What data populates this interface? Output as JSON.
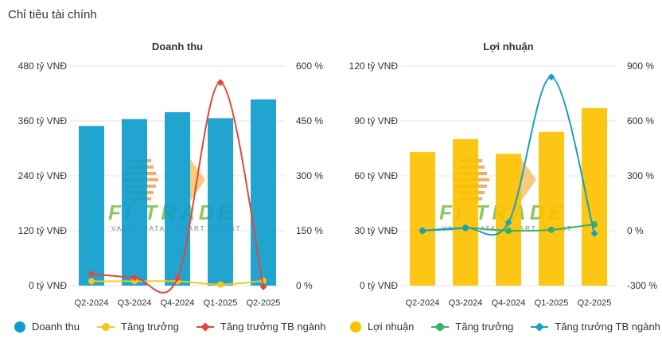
{
  "page": {
    "title": "Chỉ tiêu tài chính"
  },
  "colors": {
    "revenue_bar": "#0e9ccb",
    "profit_bar": "#fcc100",
    "growth_yellow": "#f5c919",
    "industry_red": "#e2473c",
    "growth_green": "#3aaf67",
    "industry_teal": "#1a9fc0",
    "grid": "#e6e6e6",
    "watermark_orange": "#f2a04a",
    "watermark_green": "#77c043"
  },
  "watermark": {
    "text": "FI TRADE",
    "subtext": "VALUE DATA - SMART INVEST"
  },
  "chart_data": [
    {
      "type": "bar",
      "title": "Doanh thu",
      "categories": [
        "Q2-2024",
        "Q3-2024",
        "Q4-2024",
        "Q1-2025",
        "Q2-2025"
      ],
      "ylim": [
        0,
        480
      ],
      "y2lim": [
        0,
        600
      ],
      "y_ticks": [
        "0 tỷ VNĐ",
        "120 tỷ VNĐ",
        "240 tỷ VNĐ",
        "360 tỷ VNĐ",
        "480 tỷ VNĐ"
      ],
      "y_tick_values": [
        0,
        120,
        240,
        360,
        480
      ],
      "y2_ticks": [
        "0 %",
        "150 %",
        "300 %",
        "450 %",
        "600 %"
      ],
      "y2_tick_values": [
        0,
        150,
        300,
        450,
        600
      ],
      "bars": {
        "name": "Doanh thu",
        "values": [
          349,
          364,
          379,
          366,
          407
        ]
      },
      "lines": [
        {
          "name": "Tăng trưởng",
          "axis": "right",
          "marker": "circle",
          "values": [
            12,
            12,
            12,
            3,
            13
          ]
        },
        {
          "name": "Tăng trưởng TB ngành",
          "axis": "right",
          "marker": "diamond",
          "values": [
            32,
            22,
            20,
            555,
            -3
          ]
        }
      ],
      "legend": "bottom",
      "grid": true
    },
    {
      "type": "bar",
      "title": "Lợi nhuận",
      "categories": [
        "Q2-2024",
        "Q3-2024",
        "Q4-2024",
        "Q1-2025",
        "Q2-2025"
      ],
      "ylim": [
        0,
        120
      ],
      "y2lim": [
        -300,
        900
      ],
      "y_ticks": [
        "0 tỷ VNĐ",
        "30 tỷ VNĐ",
        "60 tỷ VNĐ",
        "90 tỷ VNĐ",
        "120 tỷ VNĐ"
      ],
      "y_tick_values": [
        0,
        30,
        60,
        90,
        120
      ],
      "y2_ticks": [
        "-300 %",
        "0 %",
        "300 %",
        "600 %",
        "900 %"
      ],
      "y2_tick_values": [
        -300,
        0,
        300,
        600,
        900
      ],
      "bars": {
        "name": "Lợi nhuận",
        "values": [
          73,
          80,
          72,
          84,
          97
        ]
      },
      "lines": [
        {
          "name": "Tăng trưởng",
          "axis": "right",
          "marker": "circle",
          "values": [
            0,
            15,
            0,
            5,
            35
          ]
        },
        {
          "name": "Tăng trưởng TB ngành",
          "axis": "right",
          "marker": "diamond",
          "values": [
            0,
            15,
            45,
            840,
            -15
          ]
        }
      ],
      "legend": "bottom",
      "grid": true
    }
  ]
}
